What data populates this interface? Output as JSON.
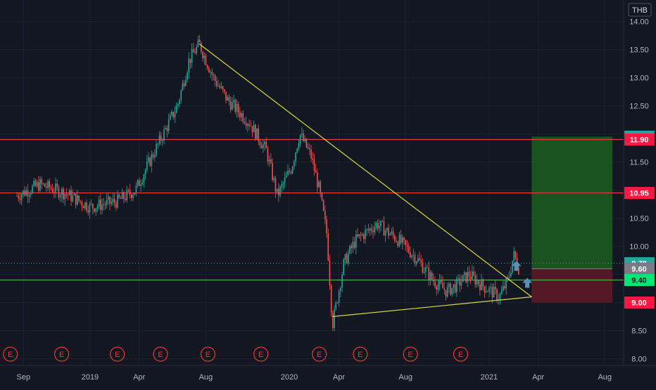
{
  "currency": "THB",
  "chart_data": {
    "type": "candlestick",
    "currency": "THB",
    "x_ticks": [
      "Sep",
      "2019",
      "Apr",
      "Aug",
      "2020",
      "Apr",
      "Aug",
      "2021",
      "Apr",
      "Aug"
    ],
    "y_ticks": [
      "8.00",
      "8.50",
      "9.00",
      "9.50",
      "10.00",
      "10.50",
      "11.00",
      "11.50",
      "12.00",
      "12.50",
      "13.00",
      "13.50",
      "14.00"
    ],
    "ylim": [
      8.0,
      14.0
    ],
    "price_path": [
      {
        "date": "2018-08-20",
        "price": 10.9
      },
      {
        "date": "2018-10-01",
        "price": 11.1
      },
      {
        "date": "2018-11-15",
        "price": 10.95
      },
      {
        "date": "2019-01-01",
        "price": 10.7
      },
      {
        "date": "2019-02-20",
        "price": 10.8
      },
      {
        "date": "2019-03-25",
        "price": 11.0
      },
      {
        "date": "2019-05-10",
        "price": 11.9
      },
      {
        "date": "2019-06-10",
        "price": 12.5
      },
      {
        "date": "2019-07-01",
        "price": 13.3
      },
      {
        "date": "2019-07-20",
        "price": 13.6
      },
      {
        "date": "2019-08-15",
        "price": 13.0
      },
      {
        "date": "2019-09-10",
        "price": 12.6
      },
      {
        "date": "2019-10-20",
        "price": 12.2
      },
      {
        "date": "2019-11-20",
        "price": 11.7
      },
      {
        "date": "2019-12-10",
        "price": 10.9
      },
      {
        "date": "2020-01-05",
        "price": 11.4
      },
      {
        "date": "2020-01-20",
        "price": 12.0
      },
      {
        "date": "2020-02-10",
        "price": 11.6
      },
      {
        "date": "2020-02-25",
        "price": 11.0
      },
      {
        "date": "2020-03-10",
        "price": 10.2
      },
      {
        "date": "2020-03-20",
        "price": 8.6
      },
      {
        "date": "2020-04-10",
        "price": 9.7
      },
      {
        "date": "2020-05-01",
        "price": 10.1
      },
      {
        "date": "2020-06-10",
        "price": 10.4
      },
      {
        "date": "2020-07-20",
        "price": 10.1
      },
      {
        "date": "2020-08-20",
        "price": 9.8
      },
      {
        "date": "2020-09-20",
        "price": 9.4
      },
      {
        "date": "2020-10-15",
        "price": 9.2
      },
      {
        "date": "2020-11-01",
        "price": 9.3
      },
      {
        "date": "2020-11-25",
        "price": 9.5
      },
      {
        "date": "2020-12-20",
        "price": 9.3
      },
      {
        "date": "2021-01-20",
        "price": 9.1
      },
      {
        "date": "2021-02-05",
        "price": 9.4
      },
      {
        "date": "2021-02-15",
        "price": 9.85
      },
      {
        "date": "2021-02-25",
        "price": 9.6
      }
    ],
    "horizontal_lines": [
      {
        "value": 11.95,
        "label": "11.95",
        "color": "#26a69a",
        "kind": "target"
      },
      {
        "value": 11.9,
        "label": "11.90",
        "color": "#ff1744",
        "kind": "resistance"
      },
      {
        "value": 10.95,
        "label": "10.95",
        "color": "#ff1744",
        "kind": "resistance"
      },
      {
        "value": 9.7,
        "label": "9.70",
        "color": "#26a69a",
        "kind": "last-price"
      },
      {
        "value": 9.6,
        "label": "9.60",
        "color": "#787b86",
        "kind": "entry"
      },
      {
        "value": 9.4,
        "label": "9.40",
        "color": "#00e676",
        "kind": "support"
      },
      {
        "value": 9.0,
        "label": "9.00",
        "color": "#ff1744",
        "kind": "stop"
      }
    ],
    "trendlines": [
      {
        "from": {
          "date": "2019-07-20",
          "price": 13.6
        },
        "to": {
          "date": "2021-03-20",
          "price": 9.1
        },
        "color": "#d9d93a"
      },
      {
        "from": {
          "date": "2020-03-20",
          "price": 8.75
        },
        "to": {
          "date": "2021-03-20",
          "price": 9.1
        },
        "color": "#d9d93a"
      }
    ],
    "position": {
      "start": "2021-03-20",
      "end": "2021-08-15",
      "entry": 9.6,
      "target": 11.95,
      "stop": 9.0
    },
    "earnings_markers": [
      {
        "date": "2018-08-08",
        "label": "E"
      },
      {
        "date": "2018-11-10",
        "label": "E"
      },
      {
        "date": "2019-02-20",
        "label": "E"
      },
      {
        "date": "2019-05-10",
        "label": "E"
      },
      {
        "date": "2019-08-05",
        "label": "E"
      },
      {
        "date": "2019-11-10",
        "label": "E"
      },
      {
        "date": "2020-02-25",
        "label": "E"
      },
      {
        "date": "2020-05-10",
        "label": "E"
      },
      {
        "date": "2020-08-10",
        "label": "E"
      },
      {
        "date": "2020-11-10",
        "label": "E"
      }
    ],
    "arrows": [
      {
        "date": "2021-02-20",
        "price": 9.65
      },
      {
        "date": "2021-03-12",
        "price": 9.35
      }
    ]
  }
}
